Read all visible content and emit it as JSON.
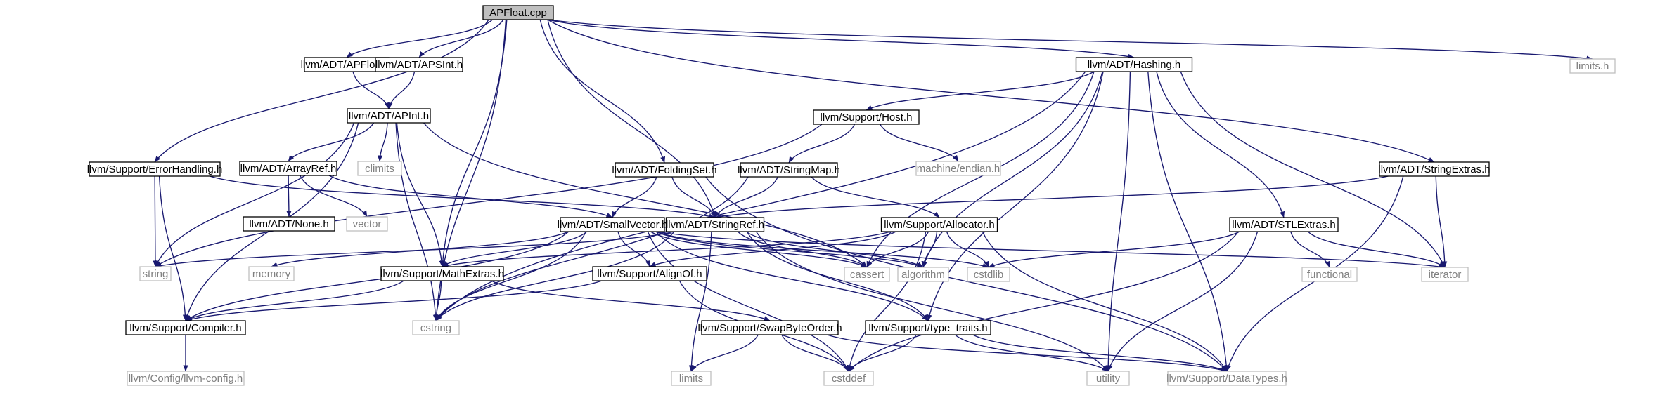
{
  "colors": {
    "edge": "#191970",
    "root_fill": "#bfbfbf",
    "node_border": "#000000",
    "external_border": "#bfbfbf",
    "external_text": "#808080",
    "node_text": "#000000"
  },
  "nodes": {
    "apfloat_cpp": {
      "label": "APFloat.cpp",
      "kind": "root"
    },
    "limits_h": {
      "label": "limits.h",
      "kind": "external"
    },
    "adt_apfloat": {
      "label": "llvm/ADT/APFloat.h",
      "kind": "header"
    },
    "adt_apsint": {
      "label": "llvm/ADT/APSInt.h",
      "kind": "header"
    },
    "adt_hashing": {
      "label": "llvm/ADT/Hashing.h",
      "kind": "header"
    },
    "adt_apint": {
      "label": "llvm/ADT/APInt.h",
      "kind": "header"
    },
    "support_host": {
      "label": "llvm/Support/Host.h",
      "kind": "header"
    },
    "climits": {
      "label": "climits",
      "kind": "external"
    },
    "machine_endian": {
      "label": "machine/endian.h",
      "kind": "external"
    },
    "support_errorhandling": {
      "label": "llvm/Support/ErrorHandling.h",
      "kind": "header"
    },
    "adt_arrayref": {
      "label": "llvm/ADT/ArrayRef.h",
      "kind": "header"
    },
    "adt_foldingset": {
      "label": "llvm/ADT/FoldingSet.h",
      "kind": "header"
    },
    "adt_stringmap": {
      "label": "llvm/ADT/StringMap.h",
      "kind": "header"
    },
    "adt_stringextras": {
      "label": "llvm/ADT/StringExtras.h",
      "kind": "header"
    },
    "adt_none": {
      "label": "llvm/ADT/None.h",
      "kind": "header"
    },
    "vector": {
      "label": "vector",
      "kind": "external"
    },
    "adt_smallvector": {
      "label": "llvm/ADT/SmallVector.h",
      "kind": "header"
    },
    "adt_stringref": {
      "label": "llvm/ADT/StringRef.h",
      "kind": "header"
    },
    "support_allocator": {
      "label": "llvm/Support/Allocator.h",
      "kind": "header"
    },
    "adt_stlextras": {
      "label": "llvm/ADT/STLExtras.h",
      "kind": "header"
    },
    "string": {
      "label": "string",
      "kind": "external"
    },
    "memory": {
      "label": "memory",
      "kind": "external"
    },
    "support_mathextras": {
      "label": "llvm/Support/MathExtras.h",
      "kind": "header"
    },
    "support_alignof": {
      "label": "llvm/Support/AlignOf.h",
      "kind": "header"
    },
    "cassert": {
      "label": "cassert",
      "kind": "external"
    },
    "algorithm": {
      "label": "algorithm",
      "kind": "external"
    },
    "cstdlib": {
      "label": "cstdlib",
      "kind": "external"
    },
    "functional": {
      "label": "functional",
      "kind": "external"
    },
    "iterator": {
      "label": "iterator",
      "kind": "external"
    },
    "support_compiler": {
      "label": "llvm/Support/Compiler.h",
      "kind": "header"
    },
    "cstring": {
      "label": "cstring",
      "kind": "external"
    },
    "support_swapbyteorder": {
      "label": "llvm/Support/SwapByteOrder.h",
      "kind": "header"
    },
    "support_typetraits": {
      "label": "llvm/Support/type_traits.h",
      "kind": "header"
    },
    "config_llvmconfig": {
      "label": "llvm/Config/llvm-config.h",
      "kind": "external"
    },
    "limits": {
      "label": "limits",
      "kind": "external"
    },
    "cstddef": {
      "label": "cstddef",
      "kind": "external"
    },
    "utility": {
      "label": "utility",
      "kind": "external"
    },
    "support_datatypes": {
      "label": "llvm/Support/DataTypes.h",
      "kind": "external"
    }
  },
  "edges": [
    [
      "apfloat_cpp",
      "adt_apfloat"
    ],
    [
      "apfloat_cpp",
      "adt_apsint"
    ],
    [
      "apfloat_cpp",
      "adt_hashing"
    ],
    [
      "apfloat_cpp",
      "limits_h"
    ],
    [
      "apfloat_cpp",
      "support_errorhandling"
    ],
    [
      "apfloat_cpp",
      "adt_foldingset"
    ],
    [
      "apfloat_cpp",
      "adt_stringextras"
    ],
    [
      "apfloat_cpp",
      "adt_stringref"
    ],
    [
      "apfloat_cpp",
      "support_mathextras"
    ],
    [
      "apfloat_cpp",
      "cstring"
    ],
    [
      "adt_apfloat",
      "adt_apint"
    ],
    [
      "adt_apsint",
      "adt_apint"
    ],
    [
      "adt_apint",
      "climits"
    ],
    [
      "adt_apint",
      "adt_arrayref"
    ],
    [
      "adt_apint",
      "string"
    ],
    [
      "adt_apint",
      "support_compiler"
    ],
    [
      "adt_apint",
      "support_mathextras"
    ],
    [
      "adt_apint",
      "cassert"
    ],
    [
      "adt_apint",
      "cstring"
    ],
    [
      "adt_hashing",
      "support_host"
    ],
    [
      "adt_hashing",
      "adt_stlextras"
    ],
    [
      "adt_hashing",
      "cassert"
    ],
    [
      "adt_hashing",
      "algorithm"
    ],
    [
      "adt_hashing",
      "iterator"
    ],
    [
      "adt_hashing",
      "utility"
    ],
    [
      "adt_hashing",
      "cstring"
    ],
    [
      "adt_hashing",
      "support_typetraits"
    ],
    [
      "adt_hashing",
      "support_datatypes"
    ],
    [
      "support_host",
      "machine_endian"
    ],
    [
      "support_host",
      "adt_stringmap"
    ],
    [
      "support_host",
      "string"
    ],
    [
      "support_errorhandling",
      "adt_stringref"
    ],
    [
      "support_errorhandling",
      "string"
    ],
    [
      "support_errorhandling",
      "support_compiler"
    ],
    [
      "adt_arrayref",
      "adt_none"
    ],
    [
      "adt_arrayref",
      "vector"
    ],
    [
      "adt_arrayref",
      "adt_smallvector"
    ],
    [
      "adt_foldingset",
      "adt_smallvector"
    ],
    [
      "adt_foldingset",
      "adt_stringref"
    ],
    [
      "adt_foldingset",
      "support_datatypes"
    ],
    [
      "adt_stringmap",
      "adt_stringref"
    ],
    [
      "adt_stringmap",
      "support_allocator"
    ],
    [
      "adt_stringmap",
      "cstring"
    ],
    [
      "adt_stringextras",
      "adt_stringref"
    ],
    [
      "adt_stringextras",
      "iterator"
    ],
    [
      "adt_stringextras",
      "support_datatypes"
    ],
    [
      "adt_smallvector",
      "support_alignof"
    ],
    [
      "adt_smallvector",
      "support_compiler"
    ],
    [
      "adt_smallvector",
      "support_mathextras"
    ],
    [
      "adt_smallvector",
      "support_typetraits"
    ],
    [
      "adt_smallvector",
      "algorithm"
    ],
    [
      "adt_smallvector",
      "cassert"
    ],
    [
      "adt_smallvector",
      "cstddef"
    ],
    [
      "adt_smallvector",
      "cstdlib"
    ],
    [
      "adt_smallvector",
      "cstring"
    ],
    [
      "adt_smallvector",
      "iterator"
    ],
    [
      "adt_smallvector",
      "memory"
    ],
    [
      "adt_stringref",
      "support_typetraits"
    ],
    [
      "adt_stringref",
      "algorithm"
    ],
    [
      "adt_stringref",
      "cassert"
    ],
    [
      "adt_stringref",
      "cstring"
    ],
    [
      "adt_stringref",
      "limits"
    ],
    [
      "adt_stringref",
      "string"
    ],
    [
      "adt_stringref",
      "utility"
    ],
    [
      "support_allocator",
      "support_alignof"
    ],
    [
      "support_allocator",
      "support_datatypes"
    ],
    [
      "support_allocator",
      "support_mathextras"
    ],
    [
      "support_allocator",
      "algorithm"
    ],
    [
      "support_allocator",
      "cassert"
    ],
    [
      "support_allocator",
      "cstddef"
    ],
    [
      "support_allocator",
      "cstdlib"
    ],
    [
      "adt_stlextras",
      "cstddef"
    ],
    [
      "adt_stlextras",
      "cstdlib"
    ],
    [
      "adt_stlextras",
      "functional"
    ],
    [
      "adt_stlextras",
      "iterator"
    ],
    [
      "adt_stlextras",
      "utility"
    ],
    [
      "support_mathextras",
      "support_compiler"
    ],
    [
      "support_mathextras",
      "support_swapbyteorder"
    ],
    [
      "support_mathextras",
      "cstring"
    ],
    [
      "support_alignof",
      "support_compiler"
    ],
    [
      "support_alignof",
      "cstddef"
    ],
    [
      "support_compiler",
      "config_llvmconfig"
    ],
    [
      "support_swapbyteorder",
      "support_datatypes"
    ],
    [
      "support_swapbyteorder",
      "cstddef"
    ],
    [
      "support_swapbyteorder",
      "limits"
    ],
    [
      "support_typetraits",
      "support_datatypes"
    ],
    [
      "support_typetraits",
      "cstddef"
    ],
    [
      "support_typetraits",
      "utility"
    ]
  ]
}
